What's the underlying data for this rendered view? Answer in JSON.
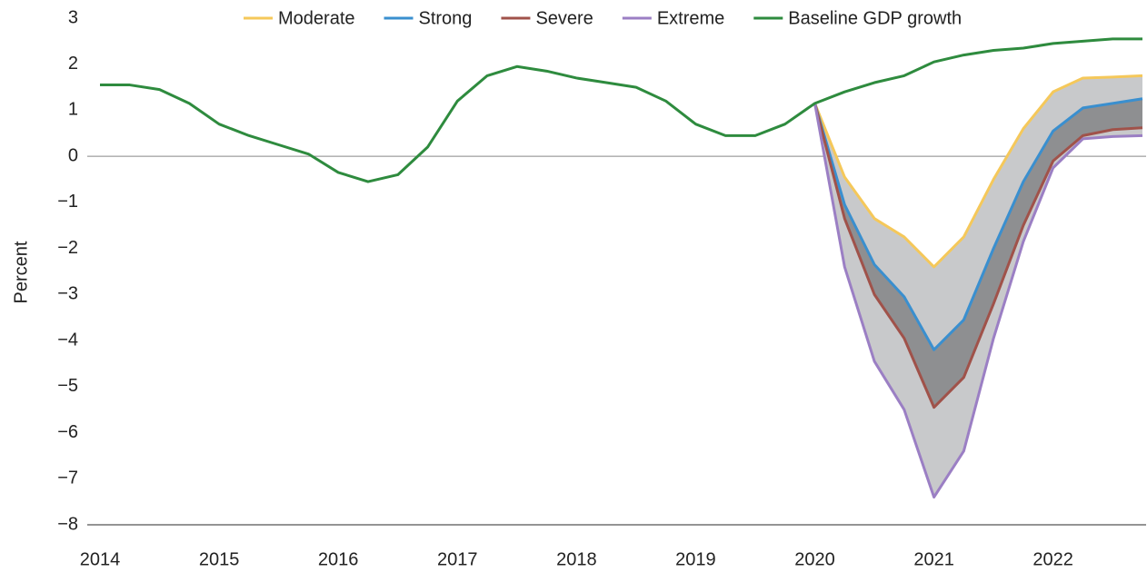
{
  "chart_data": {
    "type": "line",
    "ylabel": "Percent",
    "categories": [
      "2014",
      null,
      null,
      null,
      "2015",
      null,
      null,
      null,
      "2016",
      null,
      null,
      null,
      "2017",
      null,
      null,
      null,
      "2018",
      null,
      null,
      null,
      "2019",
      null,
      null,
      null,
      "2020",
      null,
      null,
      null,
      "2021",
      null,
      null,
      null,
      "2022",
      null,
      null,
      null
    ],
    "series": [
      {
        "name": "Moderate",
        "color": "#f5c85a",
        "values": [
          null,
          null,
          null,
          null,
          null,
          null,
          null,
          null,
          null,
          null,
          null,
          null,
          null,
          null,
          null,
          null,
          null,
          null,
          null,
          null,
          null,
          null,
          null,
          null,
          1.15,
          -0.45,
          -1.35,
          -1.75,
          -2.4,
          -1.75,
          -0.5,
          0.6,
          1.4,
          1.7,
          1.72,
          1.75
        ]
      },
      {
        "name": "Strong",
        "color": "#3a8fcf",
        "values": [
          null,
          null,
          null,
          null,
          null,
          null,
          null,
          null,
          null,
          null,
          null,
          null,
          null,
          null,
          null,
          null,
          null,
          null,
          null,
          null,
          null,
          null,
          null,
          null,
          1.15,
          -1.05,
          -2.35,
          -3.05,
          -4.2,
          -3.55,
          -2.0,
          -0.55,
          0.55,
          1.05,
          1.15,
          1.25
        ]
      },
      {
        "name": "Severe",
        "color": "#a0524a",
        "values": [
          null,
          null,
          null,
          null,
          null,
          null,
          null,
          null,
          null,
          null,
          null,
          null,
          null,
          null,
          null,
          null,
          null,
          null,
          null,
          null,
          null,
          null,
          null,
          null,
          1.15,
          -1.35,
          -3.0,
          -3.95,
          -5.45,
          -4.8,
          -3.2,
          -1.5,
          -0.1,
          0.45,
          0.58,
          0.62
        ]
      },
      {
        "name": "Extreme",
        "color": "#9b7fc4",
        "values": [
          null,
          null,
          null,
          null,
          null,
          null,
          null,
          null,
          null,
          null,
          null,
          null,
          null,
          null,
          null,
          null,
          null,
          null,
          null,
          null,
          null,
          null,
          null,
          null,
          1.15,
          -2.4,
          -4.45,
          -5.5,
          -7.4,
          -6.4,
          -3.95,
          -1.85,
          -0.25,
          0.38,
          0.43,
          0.45
        ]
      },
      {
        "name": "Baseline GDP growth",
        "color": "#2e8b3e",
        "values": [
          1.55,
          1.55,
          1.45,
          1.15,
          0.7,
          0.45,
          0.25,
          0.05,
          -0.35,
          -0.55,
          -0.4,
          0.2,
          1.2,
          1.75,
          1.95,
          1.85,
          1.7,
          1.6,
          1.5,
          1.2,
          0.7,
          0.45,
          0.45,
          0.7,
          1.15,
          1.4,
          1.6,
          1.75,
          2.05,
          2.2,
          2.3,
          2.35,
          2.45,
          2.5,
          2.55,
          2.55
        ]
      }
    ],
    "ylim": [
      -8,
      3
    ],
    "yticks": [
      {
        "value": -8,
        "label": "−8"
      },
      {
        "value": -7,
        "label": "−7"
      },
      {
        "value": -6,
        "label": "−6"
      },
      {
        "value": -5,
        "label": "−5"
      },
      {
        "value": -4,
        "label": "−4"
      },
      {
        "value": -3,
        "label": "−3"
      },
      {
        "value": -2,
        "label": "−2"
      },
      {
        "value": -1,
        "label": "−1"
      },
      0,
      1,
      2,
      3
    ],
    "legend": "top"
  }
}
